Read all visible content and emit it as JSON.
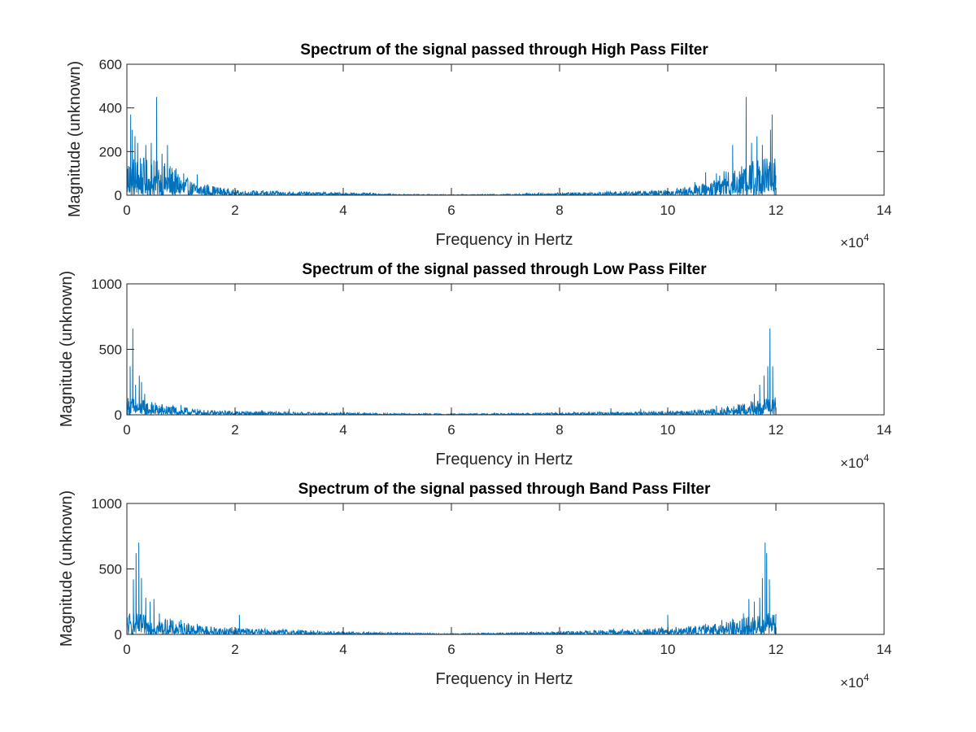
{
  "figure": {
    "background": "#ffffff"
  },
  "chart_data": [
    {
      "type": "line",
      "title": "Spectrum of the signal passed through High Pass Filter",
      "xlabel": "Frequency in Hertz",
      "ylabel": "Magnitude (unknown)",
      "xlim": [
        0,
        140000
      ],
      "ylim": [
        0,
        600
      ],
      "x_ticks": [
        0,
        20000,
        40000,
        60000,
        80000,
        100000,
        120000,
        140000
      ],
      "x_tick_labels": [
        "0",
        "2",
        "4",
        "6",
        "8",
        "10",
        "12",
        "14"
      ],
      "y_ticks": [
        0,
        200,
        400,
        600
      ],
      "y_tick_labels": [
        "0",
        "200",
        "400",
        "600"
      ],
      "x_exponent_label": "×10",
      "x_exponent_power": "4",
      "grid": false,
      "legend": "none",
      "series": [
        {
          "color": "#0072BD",
          "x_range": [
            0,
            120000
          ],
          "peaks": [
            {
              "x": 500,
              "y": 130
            },
            {
              "x": 700,
              "y": 370
            },
            {
              "x": 1000,
              "y": 300
            },
            {
              "x": 1500,
              "y": 270
            },
            {
              "x": 2000,
              "y": 240
            },
            {
              "x": 2500,
              "y": 170
            },
            {
              "x": 3500,
              "y": 230
            },
            {
              "x": 4500,
              "y": 240
            },
            {
              "x": 5000,
              "y": 160
            },
            {
              "x": 5500,
              "y": 450
            },
            {
              "x": 6500,
              "y": 190
            },
            {
              "x": 7500,
              "y": 230
            },
            {
              "x": 8000,
              "y": 110
            },
            {
              "x": 9000,
              "y": 90
            },
            {
              "x": 10500,
              "y": 100
            },
            {
              "x": 13000,
              "y": 95
            },
            {
              "x": 15000,
              "y": 50
            },
            {
              "x": 105000,
              "y": 60
            },
            {
              "x": 107000,
              "y": 105
            },
            {
              "x": 109000,
              "y": 100
            },
            {
              "x": 112000,
              "y": 230
            },
            {
              "x": 114500,
              "y": 450
            },
            {
              "x": 115500,
              "y": 240
            },
            {
              "x": 116500,
              "y": 270
            },
            {
              "x": 117500,
              "y": 230
            },
            {
              "x": 119000,
              "y": 300
            },
            {
              "x": 119300,
              "y": 370
            }
          ],
          "envelope": [
            {
              "x": 0,
              "y": 120
            },
            {
              "x": 8000,
              "y": 90
            },
            {
              "x": 12000,
              "y": 40
            },
            {
              "x": 20000,
              "y": 15
            },
            {
              "x": 45000,
              "y": 6
            },
            {
              "x": 50000,
              "y": 3
            },
            {
              "x": 60000,
              "y": 2
            },
            {
              "x": 70000,
              "y": 3
            },
            {
              "x": 75000,
              "y": 6
            },
            {
              "x": 100000,
              "y": 15
            },
            {
              "x": 108000,
              "y": 40
            },
            {
              "x": 112000,
              "y": 90
            },
            {
              "x": 120000,
              "y": 120
            }
          ]
        }
      ]
    },
    {
      "type": "line",
      "title": "Spectrum of the signal passed through Low Pass Filter",
      "xlabel": "Frequency in Hertz",
      "ylabel": "Magnitude (unknown)",
      "xlim": [
        0,
        140000
      ],
      "ylim": [
        0,
        1000
      ],
      "x_ticks": [
        0,
        20000,
        40000,
        60000,
        80000,
        100000,
        120000,
        140000
      ],
      "x_tick_labels": [
        "0",
        "2",
        "4",
        "6",
        "8",
        "10",
        "12",
        "14"
      ],
      "y_ticks": [
        0,
        500,
        1000
      ],
      "y_tick_labels": [
        "0",
        "500",
        "1000"
      ],
      "x_exponent_label": "×10",
      "x_exponent_power": "4",
      "grid": false,
      "legend": "none",
      "series": [
        {
          "color": "#0072BD",
          "x_range": [
            0,
            120000
          ],
          "peaks": [
            {
              "x": 600,
              "y": 370
            },
            {
              "x": 1100,
              "y": 660
            },
            {
              "x": 1600,
              "y": 230
            },
            {
              "x": 2300,
              "y": 300
            },
            {
              "x": 2700,
              "y": 250
            },
            {
              "x": 3300,
              "y": 160
            },
            {
              "x": 4500,
              "y": 80
            },
            {
              "x": 6000,
              "y": 70
            },
            {
              "x": 8000,
              "y": 60
            },
            {
              "x": 10000,
              "y": 75
            },
            {
              "x": 20000,
              "y": 40
            },
            {
              "x": 25000,
              "y": 35
            },
            {
              "x": 30000,
              "y": 45
            },
            {
              "x": 40000,
              "y": 30
            },
            {
              "x": 80000,
              "y": 40
            },
            {
              "x": 89500,
              "y": 50
            },
            {
              "x": 95000,
              "y": 45
            },
            {
              "x": 109000,
              "y": 70
            },
            {
              "x": 113000,
              "y": 80
            },
            {
              "x": 116000,
              "y": 160
            },
            {
              "x": 117000,
              "y": 230
            },
            {
              "x": 117800,
              "y": 300
            },
            {
              "x": 118500,
              "y": 370
            },
            {
              "x": 118900,
              "y": 660
            },
            {
              "x": 119400,
              "y": 370
            }
          ],
          "envelope": [
            {
              "x": 0,
              "y": 90
            },
            {
              "x": 8000,
              "y": 45
            },
            {
              "x": 15000,
              "y": 22
            },
            {
              "x": 30000,
              "y": 14
            },
            {
              "x": 50000,
              "y": 7
            },
            {
              "x": 60000,
              "y": 5
            },
            {
              "x": 70000,
              "y": 7
            },
            {
              "x": 90000,
              "y": 14
            },
            {
              "x": 105000,
              "y": 22
            },
            {
              "x": 112000,
              "y": 45
            },
            {
              "x": 120000,
              "y": 90
            }
          ]
        }
      ]
    },
    {
      "type": "line",
      "title": "Spectrum of the signal passed through Band Pass Filter",
      "xlabel": "Frequency in Hertz",
      "ylabel": "Magnitude (unknown)",
      "xlim": [
        0,
        140000
      ],
      "ylim": [
        0,
        1000
      ],
      "x_ticks": [
        0,
        20000,
        40000,
        60000,
        80000,
        100000,
        120000,
        140000
      ],
      "x_tick_labels": [
        "0",
        "2",
        "4",
        "6",
        "8",
        "10",
        "12",
        "14"
      ],
      "y_ticks": [
        0,
        500,
        1000
      ],
      "y_tick_labels": [
        "0",
        "500",
        "1000"
      ],
      "x_exponent_label": "×10",
      "x_exponent_power": "4",
      "grid": false,
      "legend": "none",
      "series": [
        {
          "color": "#0072BD",
          "x_range": [
            0,
            120000
          ],
          "peaks": [
            {
              "x": 1200,
              "y": 420
            },
            {
              "x": 1700,
              "y": 620
            },
            {
              "x": 2200,
              "y": 700
            },
            {
              "x": 2700,
              "y": 430
            },
            {
              "x": 3500,
              "y": 280
            },
            {
              "x": 4300,
              "y": 250
            },
            {
              "x": 5000,
              "y": 270
            },
            {
              "x": 6000,
              "y": 160
            },
            {
              "x": 8000,
              "y": 120
            },
            {
              "x": 10000,
              "y": 110
            },
            {
              "x": 13000,
              "y": 80
            },
            {
              "x": 20800,
              "y": 150
            },
            {
              "x": 100000,
              "y": 150
            },
            {
              "x": 107000,
              "y": 80
            },
            {
              "x": 110000,
              "y": 110
            },
            {
              "x": 112000,
              "y": 120
            },
            {
              "x": 114000,
              "y": 160
            },
            {
              "x": 115000,
              "y": 270
            },
            {
              "x": 116000,
              "y": 250
            },
            {
              "x": 117000,
              "y": 280
            },
            {
              "x": 117500,
              "y": 430
            },
            {
              "x": 118000,
              "y": 700
            },
            {
              "x": 118300,
              "y": 620
            },
            {
              "x": 118800,
              "y": 420
            }
          ],
          "envelope": [
            {
              "x": 0,
              "y": 110
            },
            {
              "x": 8000,
              "y": 70
            },
            {
              "x": 15000,
              "y": 40
            },
            {
              "x": 25000,
              "y": 28
            },
            {
              "x": 40000,
              "y": 14
            },
            {
              "x": 55000,
              "y": 6
            },
            {
              "x": 60000,
              "y": 4
            },
            {
              "x": 65000,
              "y": 6
            },
            {
              "x": 80000,
              "y": 14
            },
            {
              "x": 95000,
              "y": 28
            },
            {
              "x": 105000,
              "y": 40
            },
            {
              "x": 112000,
              "y": 70
            },
            {
              "x": 120000,
              "y": 110
            }
          ]
        }
      ]
    }
  ]
}
